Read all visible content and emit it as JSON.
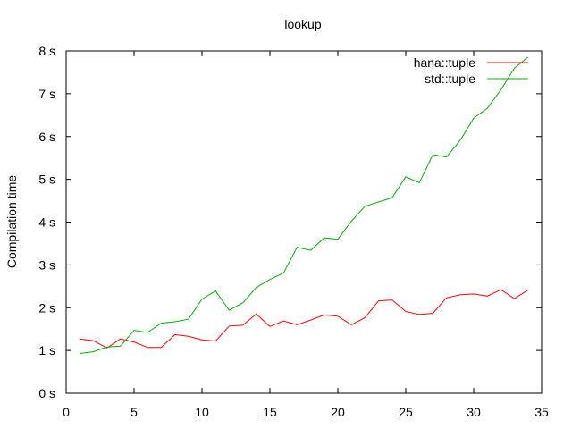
{
  "chart_data": {
    "type": "line",
    "title": "lookup",
    "xlabel": "",
    "ylabel": "Compilation time",
    "xlim": [
      0,
      35
    ],
    "ylim": [
      0,
      8
    ],
    "xticks": [
      0,
      5,
      10,
      15,
      20,
      25,
      30,
      35
    ],
    "yticks": [
      0,
      1,
      2,
      3,
      4,
      5,
      6,
      7,
      8
    ],
    "ytick_labels": [
      "0 s",
      "1 s",
      "2 s",
      "3 s",
      "4 s",
      "5 s",
      "6 s",
      "7 s",
      "8 s"
    ],
    "grid": false,
    "legend_position": "top-right",
    "x": [
      1,
      2,
      3,
      4,
      5,
      6,
      7,
      8,
      9,
      10,
      11,
      12,
      13,
      14,
      15,
      16,
      17,
      18,
      19,
      20,
      21,
      22,
      23,
      24,
      25,
      26,
      27,
      28,
      29,
      30,
      31,
      32,
      33,
      34
    ],
    "series": [
      {
        "name": "hana::tuple",
        "color": "#ff0000",
        "values": [
          1.27,
          1.23,
          1.06,
          1.27,
          1.2,
          1.07,
          1.07,
          1.37,
          1.33,
          1.25,
          1.22,
          1.57,
          1.59,
          1.85,
          1.56,
          1.69,
          1.6,
          1.71,
          1.83,
          1.8,
          1.6,
          1.77,
          2.16,
          2.18,
          1.91,
          1.84,
          1.87,
          2.23,
          2.3,
          2.32,
          2.27,
          2.42,
          2.21,
          2.41
        ]
      },
      {
        "name": "std::tuple",
        "color": "#00b000",
        "values": [
          0.93,
          0.97,
          1.08,
          1.1,
          1.47,
          1.42,
          1.64,
          1.67,
          1.73,
          2.2,
          2.39,
          1.94,
          2.11,
          2.47,
          2.66,
          2.81,
          3.41,
          3.34,
          3.63,
          3.6,
          4.02,
          4.37,
          4.47,
          4.57,
          5.06,
          4.92,
          5.58,
          5.52,
          5.91,
          6.43,
          6.66,
          7.09,
          7.6,
          7.86
        ]
      }
    ]
  }
}
